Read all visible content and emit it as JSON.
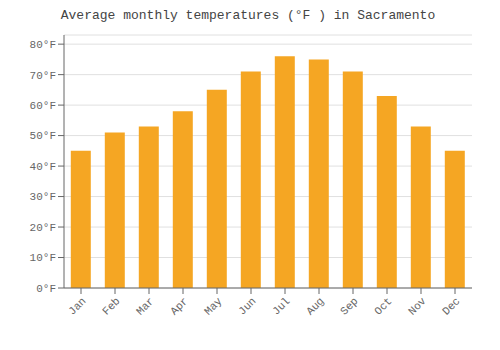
{
  "chart_data": {
    "type": "bar",
    "title": "Average monthly temperatures (°F ) in Sacramento",
    "categories": [
      "Jan",
      "Feb",
      "Mar",
      "Apr",
      "May",
      "Jun",
      "Jul",
      "Aug",
      "Sep",
      "Oct",
      "Nov",
      "Dec"
    ],
    "values": [
      45,
      51,
      53,
      58,
      65,
      71,
      76,
      75,
      71,
      63,
      53,
      45
    ],
    "color": "#F5A623",
    "ylim": [
      0,
      83
    ],
    "yticks": [
      {
        "value": 0,
        "label": "0°F"
      },
      {
        "value": 10,
        "label": "10°F"
      },
      {
        "value": 20,
        "label": "20°F"
      },
      {
        "value": 30,
        "label": "30°F"
      },
      {
        "value": 40,
        "label": "40°F"
      },
      {
        "value": 50,
        "label": "50°F"
      },
      {
        "value": 60,
        "label": "60°F"
      },
      {
        "value": 70,
        "label": "70°F"
      },
      {
        "value": 80,
        "label": "80°F"
      }
    ],
    "grid": true
  }
}
